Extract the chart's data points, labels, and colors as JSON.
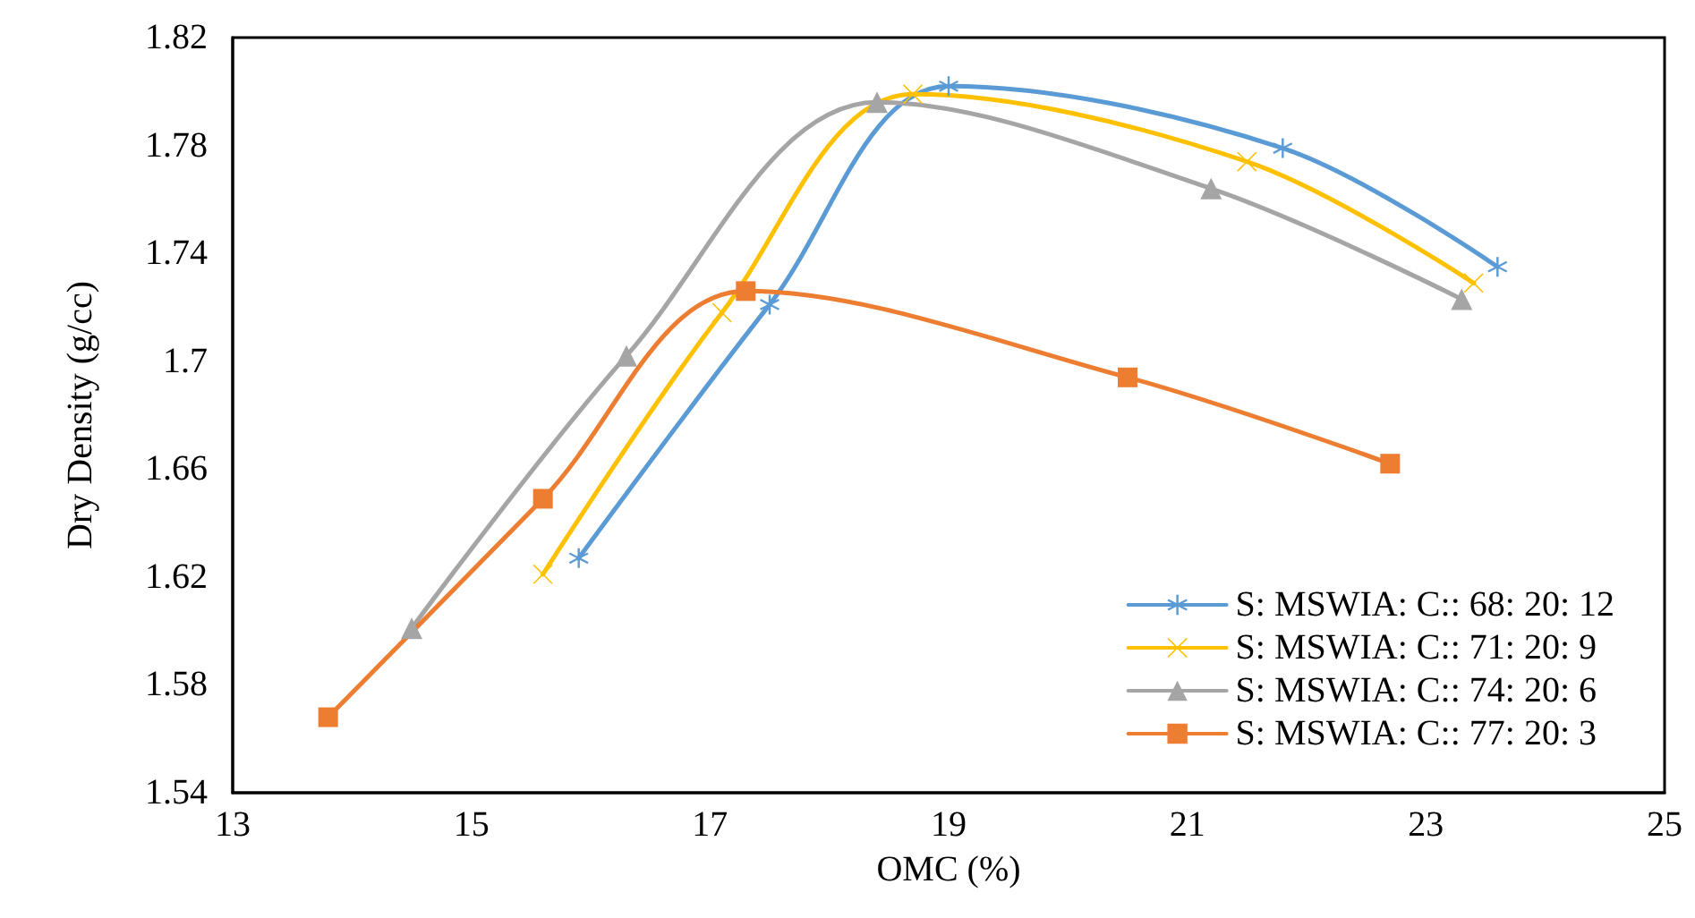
{
  "chart_data": {
    "type": "line",
    "xlabel": "OMC (%)",
    "ylabel": "Dry Density (g/cc)",
    "xlim": [
      13,
      25
    ],
    "xticks": [
      13,
      15,
      17,
      19,
      21,
      23,
      25
    ],
    "ylim": [
      1.54,
      1.82
    ],
    "yticks": [
      1.54,
      1.58,
      1.62,
      1.66,
      1.7,
      1.74,
      1.78,
      1.82
    ],
    "grid": false,
    "legend": "bottom right",
    "line_style": "solid",
    "series": [
      {
        "name": "S: MSWIA: C:: 68: 20: 12",
        "color": "#5b9bd5",
        "marker": "star",
        "x": [
          15.9,
          17.5,
          19.0,
          21.8,
          23.6
        ],
        "values": [
          1.627,
          1.721,
          1.802,
          1.779,
          1.735
        ]
      },
      {
        "name": "S: MSWIA: C:: 71: 20: 9",
        "color": "#ffc000",
        "marker": "cross",
        "x": [
          15.6,
          17.1,
          18.7,
          21.5,
          23.4
        ],
        "values": [
          1.621,
          1.718,
          1.799,
          1.774,
          1.729
        ]
      },
      {
        "name": "S: MSWIA: C:: 74: 20: 6",
        "color": "#a5a5a5",
        "marker": "triangle",
        "x": [
          14.5,
          16.3,
          18.4,
          21.2,
          23.3
        ],
        "values": [
          1.601,
          1.702,
          1.796,
          1.764,
          1.723
        ]
      },
      {
        "name": "S: MSWIA: C:: 77: 20: 3",
        "color": "#ed7d31",
        "marker": "square",
        "x": [
          13.8,
          15.6,
          17.3,
          20.5,
          22.7
        ],
        "values": [
          1.568,
          1.649,
          1.726,
          1.694,
          1.662
        ]
      }
    ]
  }
}
